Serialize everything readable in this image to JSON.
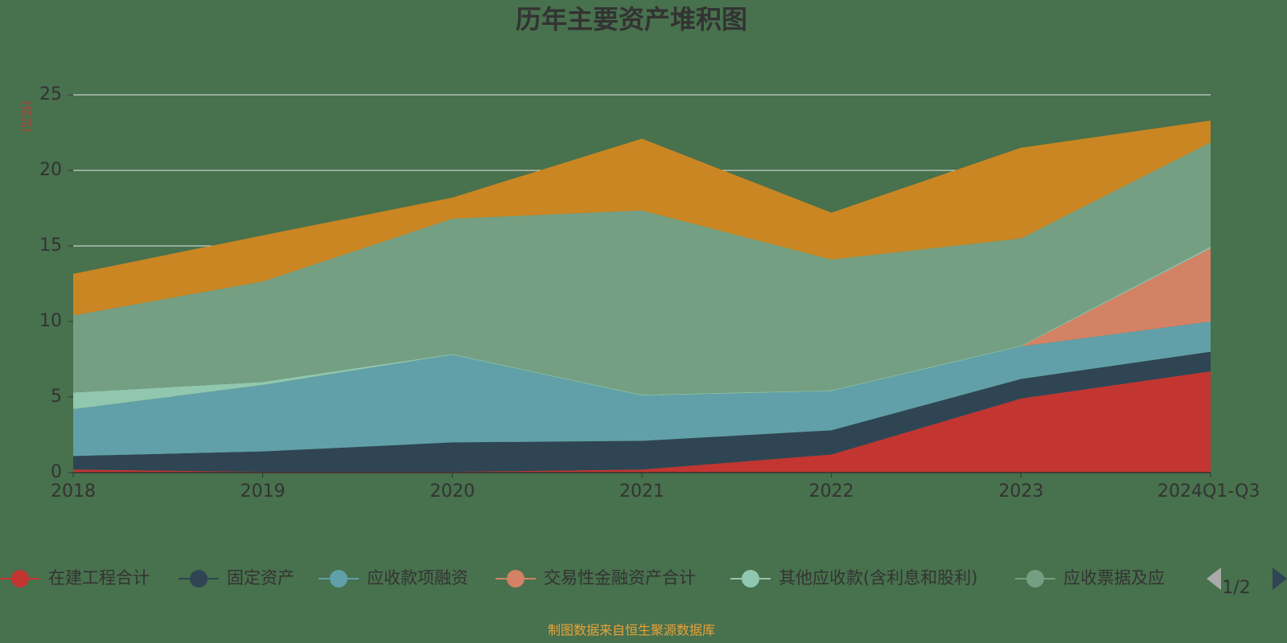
{
  "chart_data": {
    "type": "stacked_area",
    "title": "历年主要资产堆积图",
    "y_label": "(亿元)",
    "categories": [
      "2018",
      "2019",
      "2020",
      "2021",
      "2022",
      "2023",
      "2024Q1-Q3"
    ],
    "series": [
      {
        "name": "在建工程合计",
        "color": "#c23531",
        "values": [
          0.2,
          0.05,
          0.05,
          0.2,
          1.2,
          4.9,
          6.7
        ]
      },
      {
        "name": "固定资产",
        "color": "#2f4554",
        "values": [
          0.9,
          1.35,
          1.95,
          1.9,
          1.6,
          1.3,
          1.3
        ]
      },
      {
        "name": "应收款项融资",
        "color": "#61a0a8",
        "values": [
          3.1,
          4.4,
          5.8,
          3.0,
          2.6,
          2.15,
          2.0
        ]
      },
      {
        "name": "交易性金融资产合计",
        "color": "#d48265",
        "values": [
          0,
          0,
          0,
          0,
          0,
          0,
          4.85
        ]
      },
      {
        "name": "其他应收款(含利息和股利)",
        "color": "#91c7ae",
        "values": [
          1.1,
          0.2,
          0.05,
          0.05,
          0.05,
          0.05,
          0.1
        ]
      },
      {
        "name": "应收票据及应",
        "color": "#749f83",
        "values": [
          5.1,
          6.65,
          8.95,
          12.2,
          8.65,
          7.1,
          6.9
        ]
      },
      {
        "color": "#ca8622",
        "values": [
          2.75,
          3.05,
          1.4,
          4.75,
          3.1,
          6.0,
          1.45
        ]
      }
    ],
    "ylim": [
      0,
      25
    ],
    "yticks": [
      0,
      5,
      10,
      15,
      20,
      25
    ],
    "grid": true,
    "legend_page": "1/2",
    "source": "制图数据来自恒生聚源数据库"
  }
}
